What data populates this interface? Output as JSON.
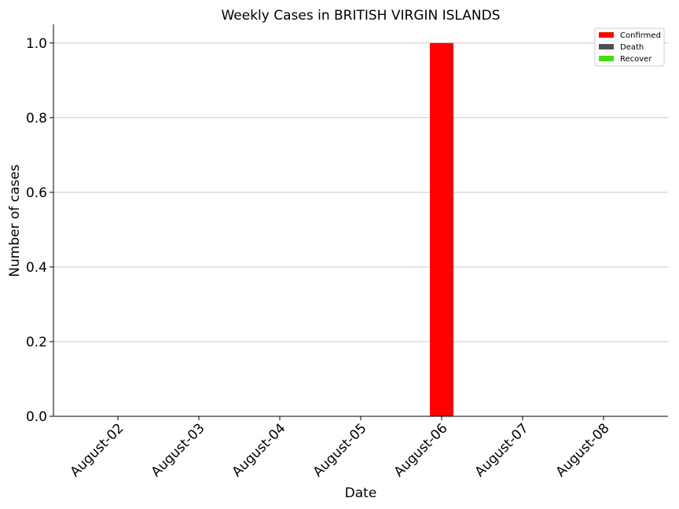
{
  "chart_data": {
    "type": "bar",
    "title": "Weekly Cases in BRITISH VIRGIN ISLANDS",
    "xlabel": "Date",
    "ylabel": "Number of cases",
    "categories": [
      "August-02",
      "August-03",
      "August-04",
      "August-05",
      "August-06",
      "August-07",
      "August-08"
    ],
    "series": [
      {
        "name": "Confirmed",
        "color": "#ff0000",
        "values": [
          0,
          0,
          0,
          0,
          1,
          0,
          0
        ]
      },
      {
        "name": "Death",
        "color": "#505050",
        "values": [
          0,
          0,
          0,
          0,
          0,
          0,
          0
        ]
      },
      {
        "name": "Recover",
        "color": "#44dd11",
        "values": [
          0,
          0,
          0,
          0,
          0,
          0,
          0
        ]
      }
    ],
    "yticks": [
      "0.0",
      "0.2",
      "0.4",
      "0.6",
      "0.8",
      "1.0"
    ],
    "ylim": [
      0,
      1.05
    ],
    "grid": "horizontal",
    "legend_position": "top-right",
    "stacked": true
  }
}
